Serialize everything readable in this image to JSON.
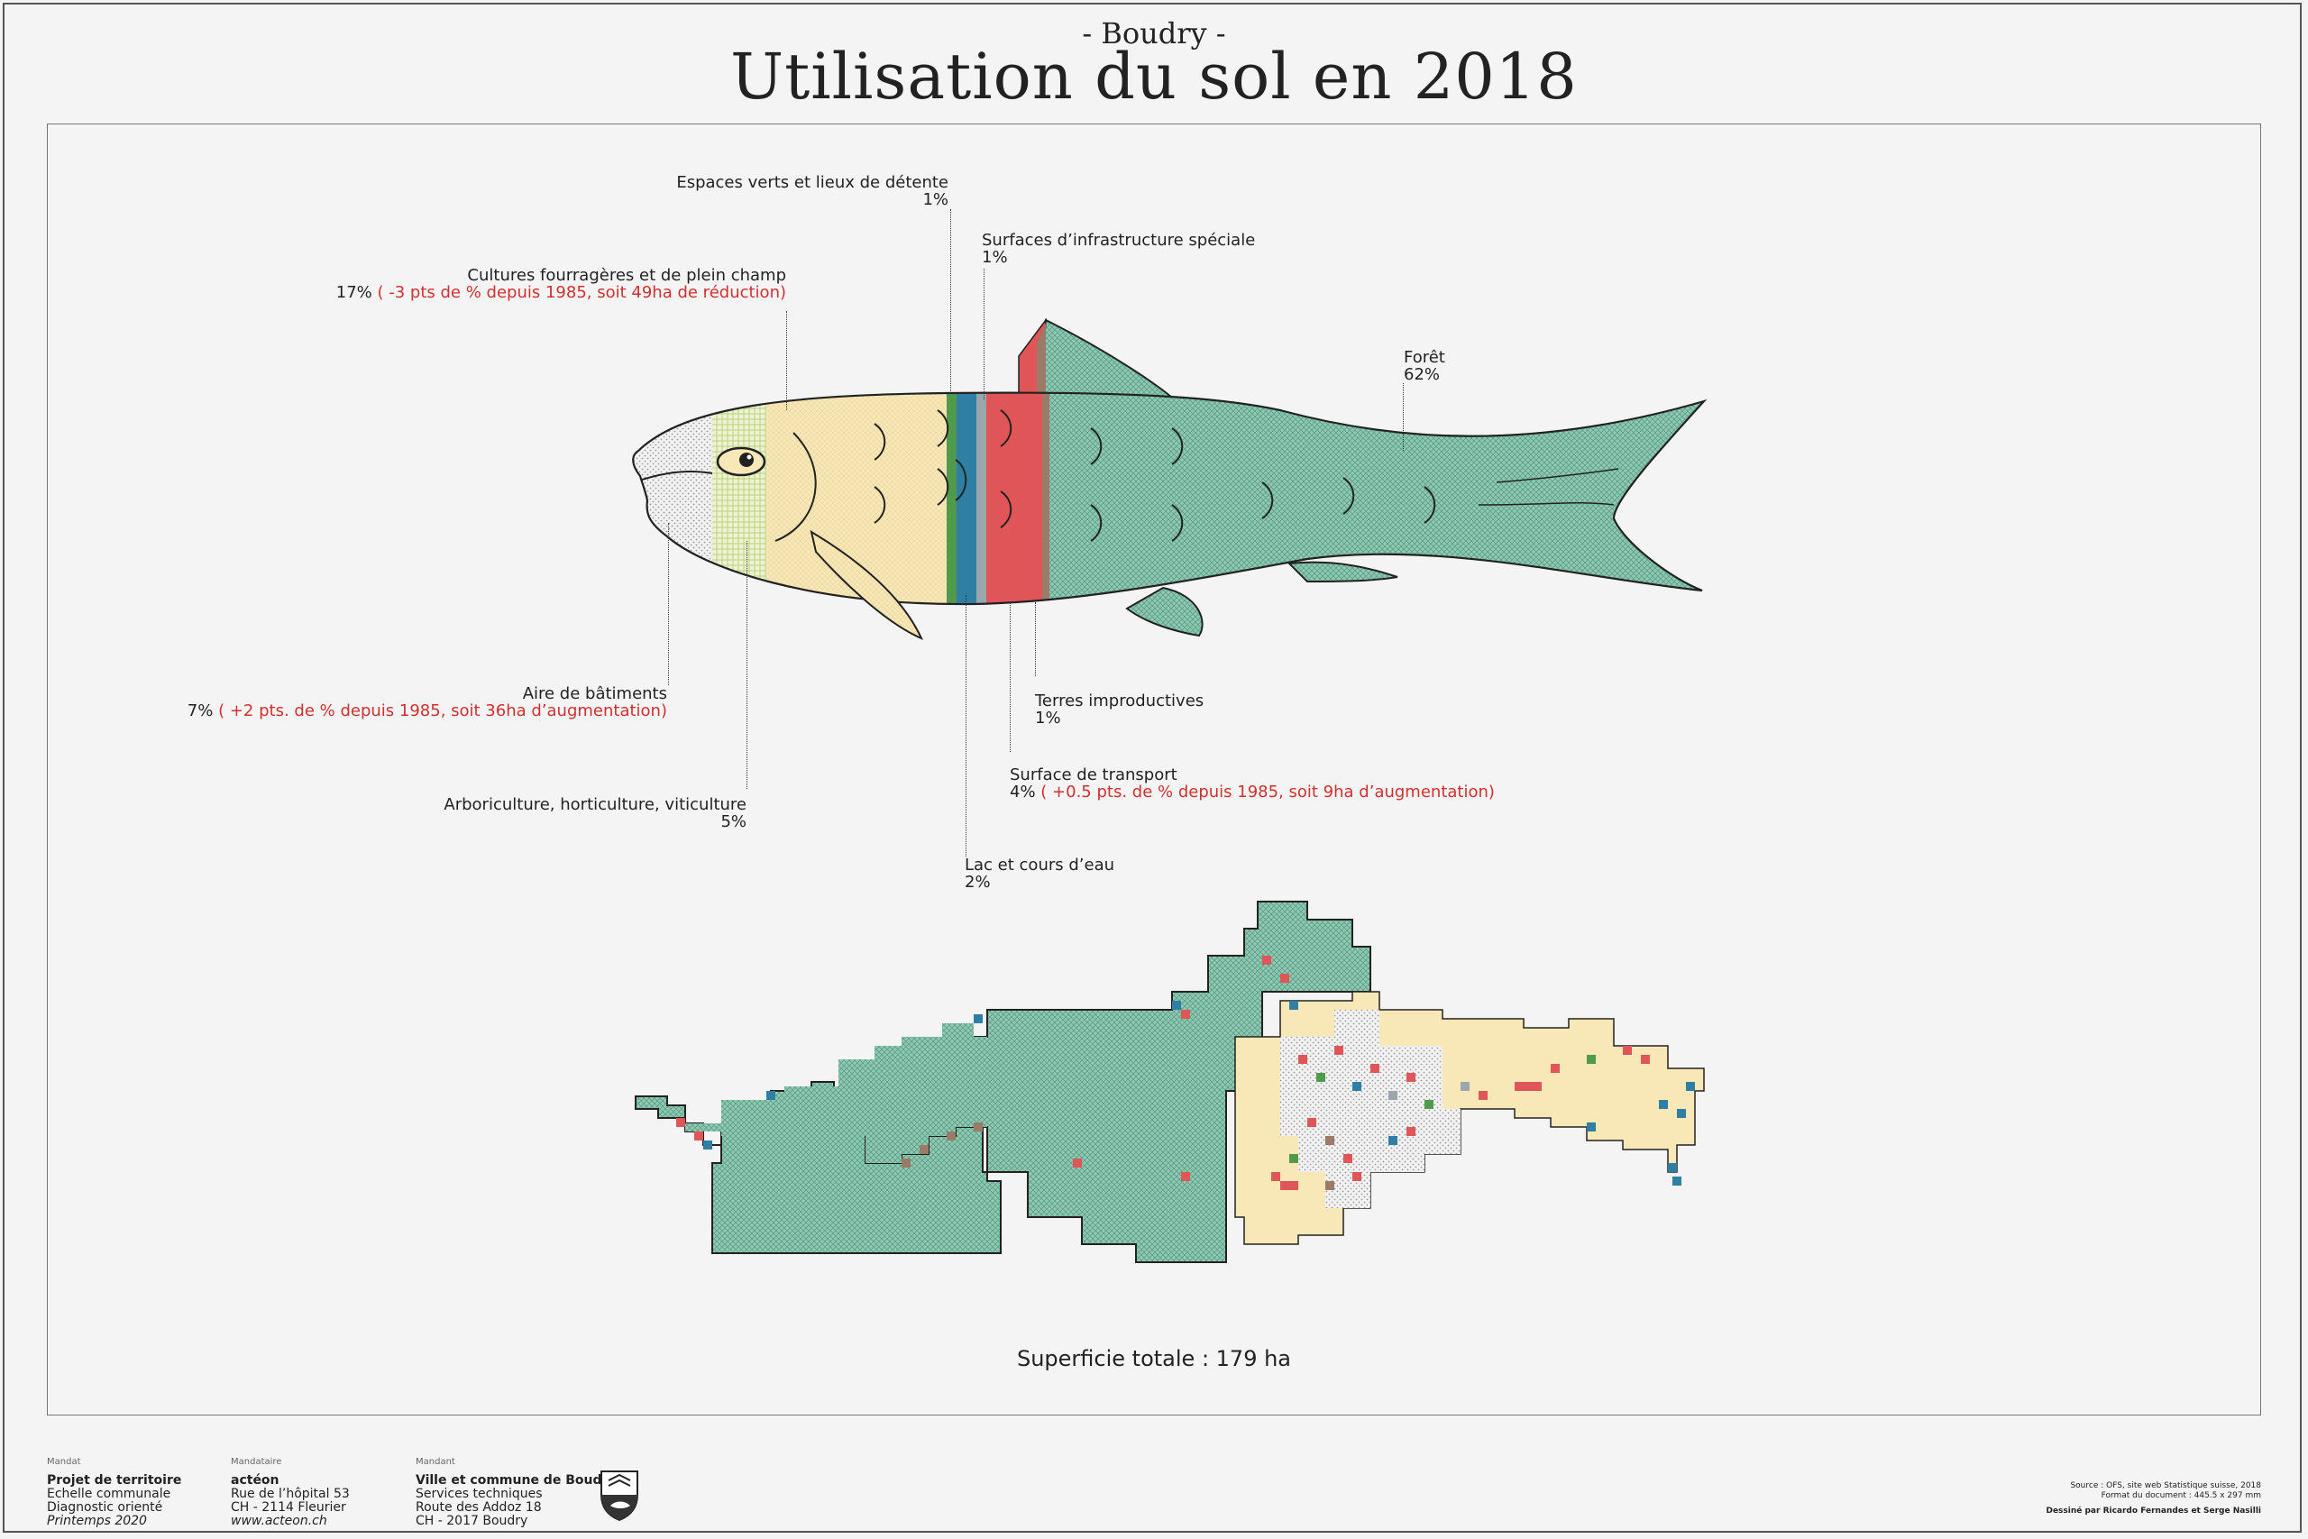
{
  "header": {
    "subtitle": "- Boudry -",
    "title": "Utilisation du sol en 2018"
  },
  "chart_data": {
    "type": "bar",
    "categories": [
      "Aire de bâtiments",
      "Arboriculture, horticulture, viticulture",
      "Cultures fourragères et de plein champ",
      "Espaces verts et lieux de détente",
      "Lac et cours d’eau",
      "Surfaces d’infrastructure spéciale",
      "Surface de transport",
      "Terres improductives",
      "Forêt"
    ],
    "values": [
      7,
      5,
      17,
      1,
      2,
      1,
      4,
      1,
      62
    ],
    "unit": "%",
    "colors": [
      "#d9d9d9",
      "#dbe8b0",
      "#f8e8b8",
      "#4f9a4d",
      "#2f7fa5",
      "#9aa7ad",
      "#e05658",
      "#9b7a68",
      "#8fc9b2"
    ]
  },
  "labels": {
    "espaces": {
      "name": "Espaces verts et lieux de détente",
      "value": "1%"
    },
    "infra": {
      "name": "Surfaces d’infrastructure spéciale",
      "value": "1%"
    },
    "cultures": {
      "name": "Cultures fourragères et de plein champ",
      "value": "17%",
      "change": "( -3 pts de % depuis 1985, soit 49ha de réduction)"
    },
    "foret": {
      "name": "Forêt",
      "value": "62%"
    },
    "batiments": {
      "name": "Aire de bâtiments",
      "value": "7%",
      "change": "( +2 pts. de % depuis 1985, soit 36ha d’augmentation)"
    },
    "terres": {
      "name": "Terres improductives",
      "value": "1%"
    },
    "transport": {
      "name": "Surface de transport",
      "value": "4%",
      "change": "( +0.5 pts. de % depuis 1985, soit 9ha d’augmentation)"
    },
    "arbo": {
      "name": "Arboriculture, horticulture, viticulture",
      "value": "5%"
    },
    "lac": {
      "name": "Lac et cours d’eau",
      "value": "2%"
    }
  },
  "total": "Superficie totale : 179 ha",
  "footer": {
    "mandat": {
      "caption": "Mandat",
      "line1": "Projet de territoire",
      "line2": "Echelle communale",
      "line3": "Diagnostic orienté",
      "line4": "Printemps 2020"
    },
    "mandataire": {
      "caption": "Mandataire",
      "line1": "actéon",
      "line2": "Rue de l’hôpital 53",
      "line3": "CH - 2114 Fleurier",
      "line4": "www.acteon.ch"
    },
    "mandant": {
      "caption": "Mandant",
      "line1": "Ville et commune de Boudry",
      "line2": "Services techniques",
      "line3": "Route des Addoz 18",
      "line4": "CH - 2017 Boudry"
    },
    "source1": "Source : OFS, site web Statistique suisse, 2018",
    "source2": "Format du document : 445.5 x 297 mm",
    "credit": "Dessiné par Ricardo Fernandes et Serge Nasilli"
  }
}
